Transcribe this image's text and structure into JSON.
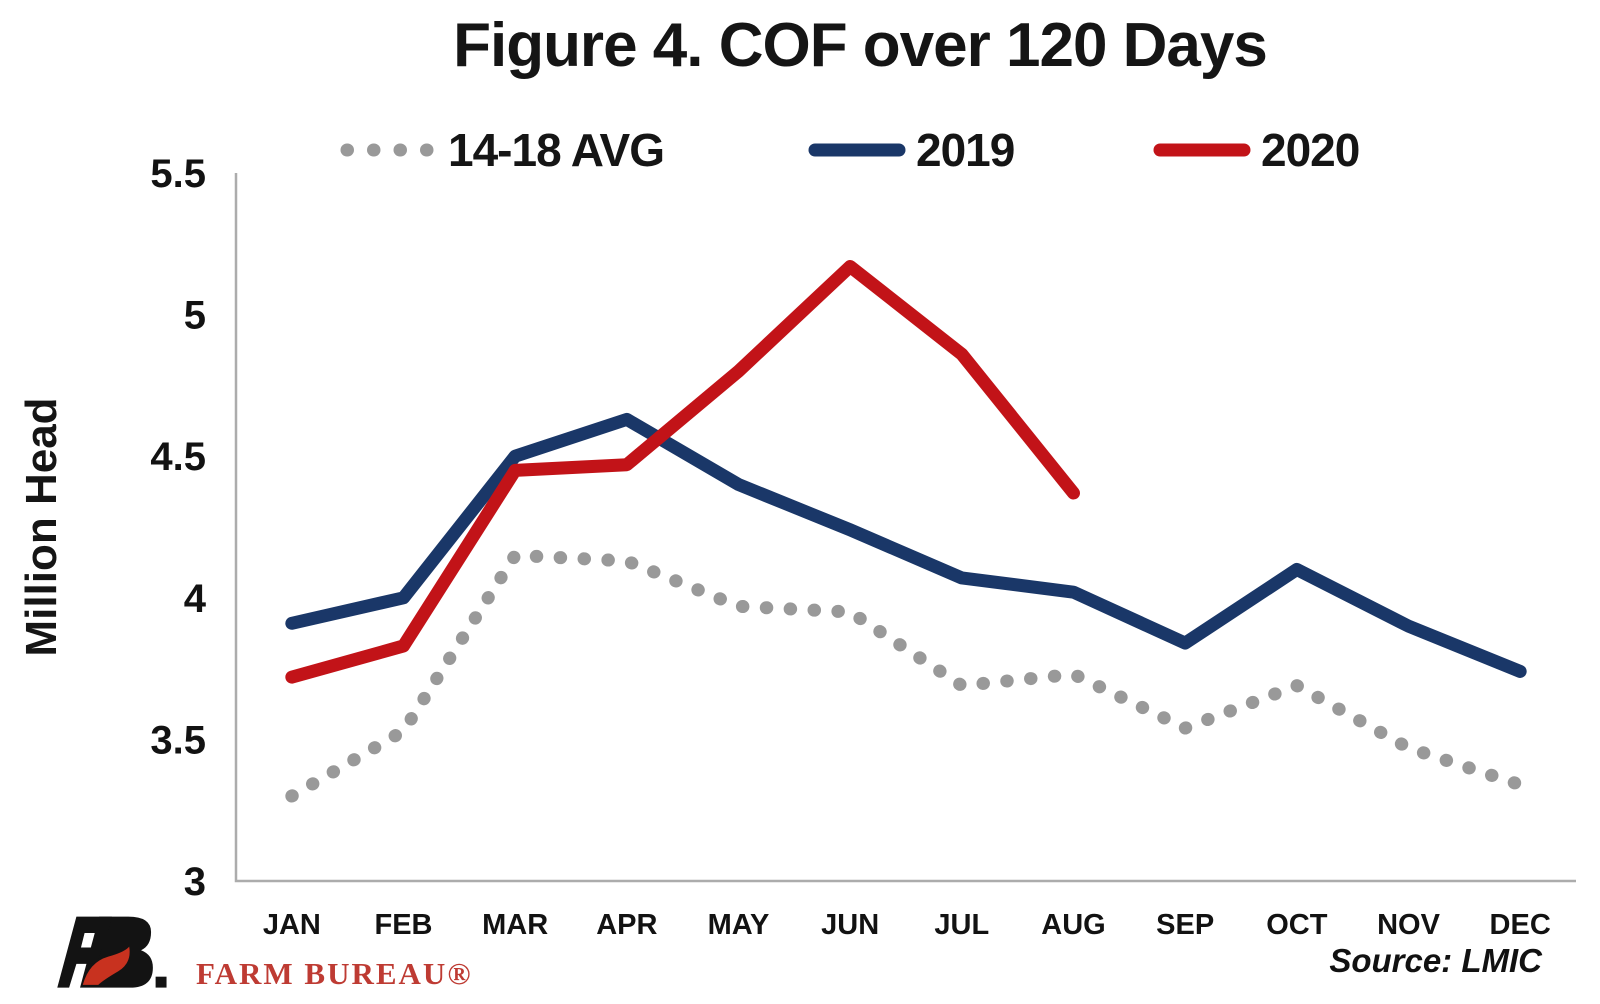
{
  "title": "Figure 4. COF over 120 Days",
  "legend": {
    "items": [
      {
        "label": "14-18 AVG",
        "color": "#999999",
        "style": "dotted"
      },
      {
        "label": "2019",
        "color": "#1A3768",
        "style": "solid"
      },
      {
        "label": "2020",
        "color": "#C21318",
        "style": "solid"
      }
    ]
  },
  "y_axis": {
    "title": "Million Head"
  },
  "footer": {
    "source": "Source: LMIC",
    "brand": "FARM BUREAU®"
  },
  "chart_data": {
    "type": "line",
    "title": "Figure 4. COF over 120 Days",
    "xlabel": "",
    "ylabel": "Million Head",
    "ylim": [
      3,
      5.5
    ],
    "yticks": [
      5.5,
      5,
      4.5,
      4,
      3.5,
      3
    ],
    "grid": false,
    "legend_position": "top",
    "axis_color": "#ACACAC",
    "categories": [
      "JAN",
      "FEB",
      "MAR",
      "APR",
      "MAY",
      "JUN",
      "JUL",
      "AUG",
      "SEP",
      "OCT",
      "NOV",
      "DEC"
    ],
    "series": [
      {
        "name": "14-18 AVG",
        "style": "dotted",
        "color": "#999999",
        "values": [
          3.3,
          3.53,
          4.15,
          4.13,
          3.97,
          3.95,
          3.69,
          3.73,
          3.54,
          3.69,
          3.47,
          3.34
        ]
      },
      {
        "name": "2019",
        "style": "solid",
        "color": "#1A3768",
        "values": [
          3.91,
          4.0,
          4.5,
          4.63,
          4.4,
          4.24,
          4.07,
          4.02,
          3.84,
          4.1,
          3.9,
          3.74
        ]
      },
      {
        "name": "2020",
        "style": "solid",
        "color": "#C21318",
        "values": [
          3.72,
          3.83,
          4.45,
          4.47,
          4.8,
          5.17,
          4.86,
          4.37
        ]
      }
    ]
  }
}
